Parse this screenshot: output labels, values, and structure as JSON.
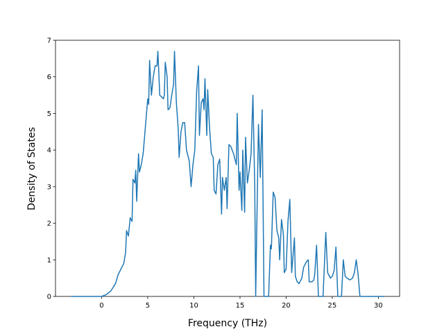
{
  "chart_data": {
    "type": "line",
    "xlabel": "Frequency (THz)",
    "ylabel": "Density of States",
    "xlim": [
      -5.0,
      32.3
    ],
    "ylim": [
      0,
      7
    ],
    "xticks": [
      0,
      5,
      10,
      15,
      20,
      25,
      30
    ],
    "yticks": [
      0,
      1,
      2,
      3,
      4,
      5,
      6,
      7
    ],
    "series": [
      {
        "color": "#1f77b4",
        "x": [
          -3.3,
          0,
          0.5,
          1,
          1.5,
          1.8,
          2.1,
          2.4,
          2.6,
          2.7,
          2.9,
          3.1,
          3.3,
          3.4,
          3.6,
          3.7,
          3.8,
          4.0,
          4.1,
          4.3,
          4.5,
          4.8,
          5.0,
          5.1,
          5.2,
          5.4,
          5.6,
          5.8,
          6.0,
          6.1,
          6.3,
          6.5,
          6.7,
          6.8,
          6.9,
          7.1,
          7.2,
          7.4,
          7.6,
          7.8,
          7.9,
          8.1,
          8.3,
          8.4,
          8.6,
          8.8,
          9.0,
          9.2,
          9.5,
          9.7,
          9.9,
          10.1,
          10.3,
          10.5,
          10.6,
          10.8,
          11.0,
          11.1,
          11.2,
          11.4,
          11.5,
          11.7,
          11.9,
          12.1,
          12.2,
          12.4,
          12.6,
          12.8,
          13.0,
          13.1,
          13.3,
          13.5,
          13.6,
          13.8,
          14.0,
          14.3,
          14.6,
          14.7,
          14.9,
          15.0,
          15.2,
          15.3,
          15.5,
          15.6,
          15.8,
          16.0,
          16.2,
          16.4,
          16.6,
          16.7,
          17.0,
          17.2,
          17.4,
          17.6,
          18.1,
          18.3,
          18.4,
          18.6,
          18.8,
          19.0,
          19.2,
          19.3,
          19.5,
          19.7,
          19.8,
          20.0,
          20.2,
          20.4,
          20.6,
          20.9,
          21.0,
          21.2,
          21.4,
          21.7,
          21.9,
          22.2,
          22.4,
          22.5,
          22.8,
          23.0,
          23.1,
          23.3,
          23.5,
          24.0,
          24.3,
          24.5,
          24.8,
          25.0,
          25.2,
          25.4,
          25.6,
          26.0,
          26.2,
          26.4,
          26.6,
          26.9,
          27.2,
          27.4,
          27.6,
          27.8,
          28.0,
          29.0,
          30.6
        ],
        "values": [
          0,
          0,
          0.05,
          0.15,
          0.35,
          0.6,
          0.75,
          0.9,
          1.2,
          1.8,
          1.65,
          2.15,
          2.05,
          3.2,
          3.1,
          3.45,
          2.6,
          3.9,
          3.4,
          3.6,
          3.9,
          4.8,
          5.4,
          5.25,
          6.45,
          5.5,
          6.0,
          6.3,
          6.3,
          6.7,
          5.5,
          5.45,
          5.4,
          5.5,
          6.4,
          6.0,
          5.1,
          5.15,
          5.5,
          5.8,
          6.7,
          5.3,
          4.6,
          3.8,
          4.5,
          4.75,
          4.75,
          4.0,
          3.7,
          3.0,
          3.6,
          4.0,
          5.6,
          6.3,
          4.4,
          5.3,
          5.4,
          5.1,
          5.95,
          4.4,
          5.65,
          4.6,
          3.9,
          3.8,
          2.9,
          2.8,
          3.6,
          3.75,
          2.25,
          3.25,
          2.9,
          3.25,
          2.4,
          4.15,
          4.1,
          3.9,
          3.6,
          5.0,
          2.9,
          3.4,
          2.35,
          4.0,
          2.3,
          4.35,
          3.1,
          3.45,
          3.9,
          5.5,
          3.0,
          0,
          4.7,
          3.25,
          5.1,
          0,
          0,
          1.4,
          1.3,
          2.85,
          2.7,
          1.8,
          1.6,
          1.0,
          2.1,
          1.7,
          0.65,
          0.75,
          2.05,
          2.65,
          0.65,
          1.6,
          0.55,
          0.4,
          0.35,
          0.5,
          0.8,
          0.95,
          1.0,
          0.4,
          0.4,
          0.45,
          0.6,
          1.4,
          0,
          0,
          1.75,
          0.65,
          0.5,
          0.55,
          0.7,
          1.35,
          0,
          0,
          1.0,
          0.55,
          0.5,
          0.45,
          0.5,
          0.65,
          1.0,
          0.6,
          0,
          0,
          0
        ]
      }
    ]
  }
}
